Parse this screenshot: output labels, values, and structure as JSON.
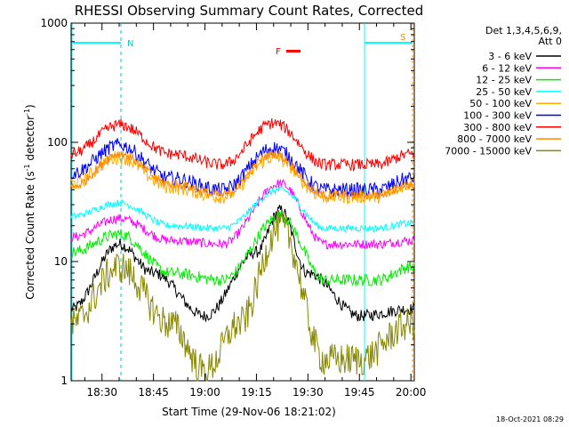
{
  "chart_data": {
    "type": "line",
    "title": "RHESSI Observing Summary Count Rates, Corrected",
    "xlabel": "Start Time (29-Nov-06 18:21:02)",
    "ylabel": "Corrected Count Rate (s⁻¹ detector⁻¹)",
    "ylabel_main": "Corrected Count Rate (s",
    "ylabel_sup1": "-1",
    "ylabel_mid": " detector",
    "ylabel_sup2": "-1",
    "ylabel_end": ")",
    "y_scale": "log",
    "ylim": [
      1,
      1000
    ],
    "y_ticks": [
      1,
      10,
      100,
      1000
    ],
    "y_tick_labels": [
      "1",
      "10",
      "100",
      "1000"
    ],
    "xlim": [
      "18:21",
      "20:01"
    ],
    "x_ticks": [
      "18:30",
      "18:45",
      "19:00",
      "19:15",
      "19:30",
      "19:45",
      "20:00"
    ],
    "legend_header_1": "Det 1,3,4,5,6,9,",
    "legend_header_2": "Att 0",
    "legend_position": "right",
    "footer_timestamp": "18-Oct-2021 08:29",
    "markers": {
      "n": "N",
      "s": "S",
      "f": "F"
    },
    "series": [
      {
        "name": "3 - 6 keV",
        "color": "#000000",
        "x": [
          "18:21",
          "18:35",
          "18:45",
          "19:00",
          "19:15",
          "19:22",
          "19:30",
          "19:45",
          "20:00"
        ],
        "y": [
          4,
          14,
          8,
          3.5,
          12,
          27,
          8,
          3.5,
          4
        ]
      },
      {
        "name": "6 - 12 keV",
        "color": "#ff00ff",
        "x": [
          "18:21",
          "18:35",
          "18:50",
          "19:05",
          "19:22",
          "19:35",
          "19:50",
          "20:00"
        ],
        "y": [
          16,
          23,
          15,
          14,
          45,
          14,
          14,
          15
        ]
      },
      {
        "name": "12 - 25 keV",
        "color": "#00ee00",
        "x": [
          "18:21",
          "18:35",
          "18:50",
          "19:05",
          "19:22",
          "19:35",
          "19:50",
          "20:00"
        ],
        "y": [
          12,
          17,
          8,
          7,
          24,
          7,
          7,
          9
        ]
      },
      {
        "name": "25 - 50 keV",
        "color": "#00ffff",
        "x": [
          "18:21",
          "18:35",
          "18:50",
          "19:05",
          "19:22",
          "19:35",
          "19:50",
          "20:00"
        ],
        "y": [
          24,
          31,
          20,
          19,
          40,
          19,
          19,
          21
        ]
      },
      {
        "name": "50 - 100 keV",
        "color": "#ffaa00",
        "x": [
          "18:21",
          "18:35",
          "18:50",
          "19:05",
          "19:20",
          "19:35",
          "19:50",
          "20:00"
        ],
        "y": [
          45,
          75,
          42,
          35,
          75,
          35,
          35,
          45
        ]
      },
      {
        "name": "100 - 300 keV",
        "color": "#0000ff",
        "x": [
          "18:21",
          "18:35",
          "18:50",
          "19:05",
          "19:20",
          "19:35",
          "19:50",
          "20:00"
        ],
        "y": [
          55,
          95,
          50,
          40,
          90,
          40,
          40,
          50
        ]
      },
      {
        "name": "300 - 800 keV",
        "color": "#ff0000",
        "x": [
          "18:21",
          "18:35",
          "18:50",
          "19:05",
          "19:20",
          "19:35",
          "19:50",
          "20:00"
        ],
        "y": [
          80,
          140,
          80,
          65,
          145,
          65,
          65,
          80
        ]
      },
      {
        "name": "800 - 7000 keV",
        "color": "#ff8800",
        "x": [
          "18:21",
          "18:35",
          "18:50",
          "19:05",
          "19:20",
          "19:35",
          "19:50",
          "20:00"
        ],
        "y": [
          42,
          80,
          45,
          36,
          80,
          36,
          36,
          44
        ]
      },
      {
        "name": "7000 - 15000 keV",
        "color": "#888800",
        "x": [
          "18:21",
          "18:35",
          "18:50",
          "19:00",
          "19:10",
          "19:22",
          "19:35",
          "19:45",
          "20:00"
        ],
        "y": [
          3,
          9,
          3,
          1.2,
          3,
          20,
          1.5,
          1.5,
          3
        ]
      }
    ]
  }
}
